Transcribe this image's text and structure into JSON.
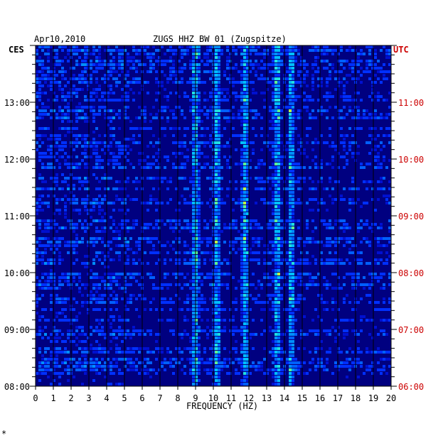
{
  "header": {
    "date": "Apr10,2010",
    "station": "ZUGS HHZ BW 01 (Zugspitze)"
  },
  "footer": {
    "mark": "*"
  },
  "colors": {
    "background": "#000080",
    "left_axis_text": "#000000",
    "right_axis_text": "#cc0000"
  },
  "chart_data": {
    "type": "heatmap",
    "xlabel": "FREQUENCY (HZ)",
    "left_axis_label": "CES",
    "right_axis_label": "UTC",
    "xlim": [
      0,
      20
    ],
    "x_ticks": [
      "0",
      "1",
      "2",
      "3",
      "4",
      "5",
      "6",
      "7",
      "8",
      "9",
      "10",
      "11",
      "12",
      "13",
      "14",
      "15",
      "16",
      "17",
      "18",
      "19",
      "20"
    ],
    "left_ticks": [
      "13:00",
      "12:00",
      "11:00",
      "10:00",
      "09:00",
      "08:00"
    ],
    "right_ticks": [
      "11:00",
      "10:00",
      "09:00",
      "08:00",
      "07:00",
      "06:00"
    ],
    "ytime_range_local": [
      "08:00",
      "14:00"
    ],
    "row_minutes": 10,
    "persistent_bands_hz": [
      9.0,
      10.2,
      11.8,
      13.6,
      14.4
    ]
  }
}
